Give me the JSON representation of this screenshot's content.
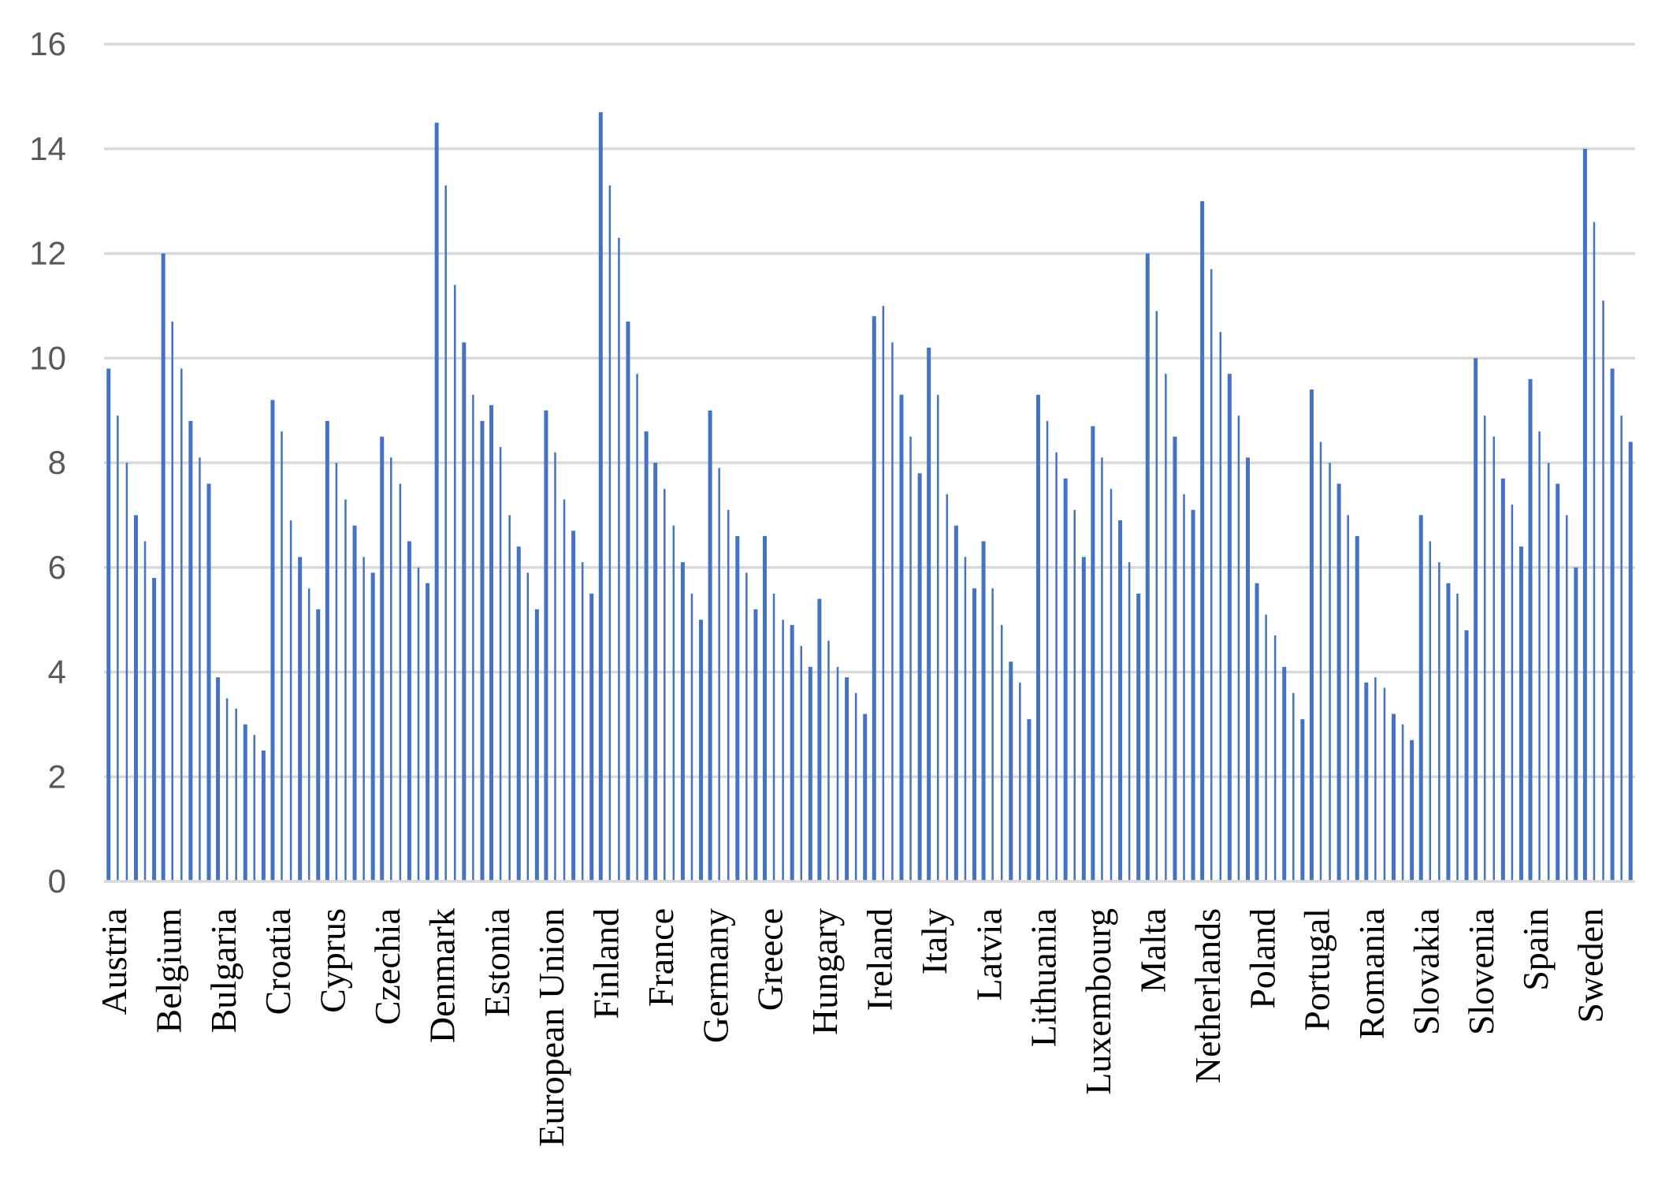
{
  "chart_data": {
    "type": "bar",
    "title": "",
    "xlabel": "",
    "ylabel": "",
    "ylim": [
      0,
      16
    ],
    "yticks": [
      0,
      2,
      4,
      6,
      8,
      10,
      12,
      14,
      16
    ],
    "grid": true,
    "legend": "none",
    "bar_color": "#4472c4",
    "grid_color": "#d9d9d9",
    "bars_per_country": 6,
    "countries": [
      "Austria",
      "Belgium",
      "Bulgaria",
      "Croatia",
      "Cyprus",
      "Czechia",
      "Denmark",
      "Estonia",
      "European Union",
      "Finland",
      "France",
      "Germany",
      "Greece",
      "Hungary",
      "Ireland",
      "Italy",
      "Latvia",
      "Lithuania",
      "Luxembourg",
      "Malta",
      "Netherlands",
      "Poland",
      "Portugal",
      "Romania",
      "Slovakia",
      "Slovenia",
      "Spain",
      "Sweden"
    ],
    "values": [
      [
        9.8,
        8.9,
        8.0,
        7.0,
        6.5,
        5.8
      ],
      [
        12.0,
        10.7,
        9.8,
        8.8,
        8.1,
        7.6
      ],
      [
        3.9,
        3.5,
        3.3,
        3.0,
        2.8,
        2.5
      ],
      [
        9.2,
        8.6,
        6.9,
        6.2,
        5.6,
        5.2
      ],
      [
        8.8,
        8.0,
        7.3,
        6.8,
        6.2,
        5.9
      ],
      [
        8.5,
        8.1,
        7.6,
        6.5,
        6.0,
        5.7
      ],
      [
        14.5,
        13.3,
        11.4,
        10.3,
        9.3,
        8.8
      ],
      [
        9.1,
        8.3,
        7.0,
        6.4,
        5.9,
        5.2
      ],
      [
        9.0,
        8.2,
        7.3,
        6.7,
        6.1,
        5.5
      ],
      [
        14.7,
        13.3,
        12.3,
        10.7,
        9.7,
        8.6
      ],
      [
        8.0,
        7.5,
        6.8,
        6.1,
        5.5,
        5.0
      ],
      [
        9.0,
        7.9,
        7.1,
        6.6,
        5.9,
        5.2
      ],
      [
        6.6,
        5.5,
        5.0,
        4.9,
        4.5,
        4.1
      ],
      [
        5.4,
        4.6,
        4.1,
        3.9,
        3.6,
        3.2
      ],
      [
        10.8,
        11.0,
        10.3,
        9.3,
        8.5,
        7.8
      ],
      [
        10.2,
        9.3,
        7.4,
        6.8,
        6.2,
        5.6
      ],
      [
        6.5,
        5.6,
        4.9,
        4.2,
        3.8,
        3.1
      ],
      [
        9.3,
        8.8,
        8.2,
        7.7,
        7.1,
        6.2
      ],
      [
        8.7,
        8.1,
        7.5,
        6.9,
        6.1,
        5.5
      ],
      [
        12.0,
        10.9,
        9.7,
        8.5,
        7.4,
        7.1
      ],
      [
        13.0,
        11.7,
        10.5,
        9.7,
        8.9,
        8.1
      ],
      [
        5.7,
        5.1,
        4.7,
        4.1,
        3.6,
        3.1
      ],
      [
        9.4,
        8.4,
        8.0,
        7.6,
        7.0,
        6.6
      ],
      [
        3.8,
        3.9,
        3.7,
        3.2,
        3.0,
        2.7
      ],
      [
        7.0,
        6.5,
        6.1,
        5.7,
        5.5,
        4.8
      ],
      [
        10.0,
        8.9,
        8.5,
        7.7,
        7.2,
        6.4
      ],
      [
        9.6,
        8.6,
        8.0,
        7.6,
        7.0,
        6.0
      ],
      [
        14.0,
        12.6,
        11.1,
        9.8,
        8.9,
        8.4
      ]
    ]
  }
}
